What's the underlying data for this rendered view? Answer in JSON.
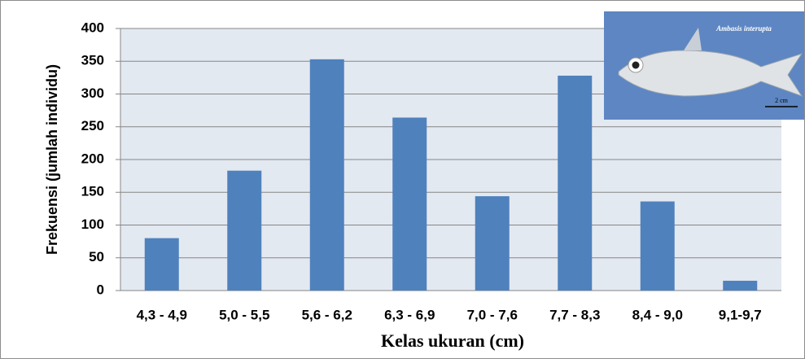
{
  "chart_data": {
    "type": "bar",
    "categories": [
      "4,3 - 4,9",
      "5,0 - 5,5",
      "5,6 - 6,2",
      "6,3 - 6,9",
      "7,0 - 7,6",
      "7,7 - 8,3",
      "8,4 - 9,0",
      "9,1-9,7"
    ],
    "values": [
      80,
      183,
      353,
      264,
      144,
      328,
      136,
      15
    ],
    "color": "#4f81bd",
    "x_label": "Kelas ukuran (cm)",
    "y_label": "Frekuensi (jumlah individu)",
    "ylim": [
      0,
      400
    ],
    "yticks": [
      0,
      50,
      100,
      150,
      200,
      250,
      300,
      350,
      400
    ],
    "grid": true,
    "annotations": [
      "Ambasis interupta",
      "2 cm"
    ]
  }
}
